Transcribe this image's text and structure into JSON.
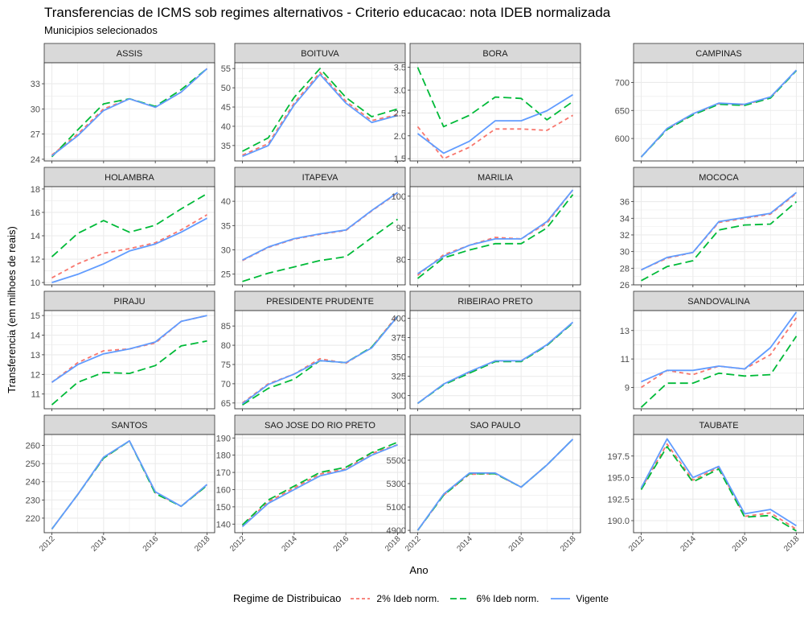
{
  "title": "Transferencias de ICMS sob regimes alternativos - Criterio educacao: nota IDEB normalizada",
  "subtitle": "Municipios selecionados",
  "xlabel": "Ano",
  "ylabel": "Transferencia (em milhoes de reais)",
  "legend": {
    "title": "Regime de Distribuicao",
    "position": "bottom",
    "items": [
      {
        "label": "2% Ideb norm.",
        "color": "#F8766D",
        "dash": "dashed"
      },
      {
        "label": "6% Ideb norm.",
        "color": "#00BA38",
        "dash": "longdash"
      },
      {
        "label": "Vigente",
        "color": "#619CFF",
        "dash": "solid"
      }
    ]
  },
  "colors": {
    "panel_bg": "#FFFFFF",
    "strip_bg": "#D9D9D9",
    "grid": "#EBEBEB",
    "border": "#333333"
  },
  "chart_data": {
    "type": "line",
    "grid": true,
    "x": [
      2012,
      2013,
      2014,
      2015,
      2016,
      2017,
      2018
    ],
    "xticks": [
      2012,
      2014,
      2016,
      2018
    ],
    "series_names": [
      "2% Ideb norm.",
      "6% Ideb norm.",
      "Vigente"
    ],
    "panels": [
      {
        "name": "ASSIS",
        "ylim": [
          23.8,
          35.5
        ],
        "yticks": [
          24,
          27,
          30,
          33
        ],
        "series": [
          [
            24.5,
            27.0,
            30.0,
            31.2,
            30.2,
            32.0,
            34.8
          ],
          [
            24.3,
            27.5,
            30.6,
            31.2,
            30.3,
            32.3,
            34.8
          ],
          [
            24.4,
            26.8,
            29.8,
            31.2,
            30.2,
            32.0,
            34.8
          ]
        ]
      },
      {
        "name": "BOITUVA",
        "ylim": [
          31.0,
          56.5
        ],
        "yticks": [
          35,
          40,
          45,
          50,
          55
        ],
        "series": [
          [
            32.5,
            35.5,
            46.0,
            54.0,
            46.5,
            41.5,
            43.0
          ],
          [
            33.5,
            37.0,
            47.5,
            55.0,
            47.5,
            42.5,
            44.5
          ],
          [
            32.2,
            35.0,
            45.5,
            53.5,
            46.0,
            41.0,
            42.8
          ]
        ]
      },
      {
        "name": "BORA",
        "ylim": [
          1.45,
          3.6
        ],
        "yticks": [
          1.5,
          2.0,
          2.5,
          3.0,
          3.5
        ],
        "series": [
          [
            2.2,
            1.5,
            1.75,
            2.15,
            2.15,
            2.12,
            2.45
          ],
          [
            3.5,
            2.2,
            2.45,
            2.85,
            2.82,
            2.35,
            2.75
          ],
          [
            2.05,
            1.62,
            1.88,
            2.33,
            2.33,
            2.55,
            2.9
          ]
        ]
      },
      {
        "name": "CAMPINAS",
        "ylim": [
          560,
          735
        ],
        "yticks": [
          600,
          650,
          700
        ],
        "series": [
          [
            567,
            617,
            643,
            662,
            660,
            673,
            722
          ],
          [
            567,
            616,
            642,
            661,
            659,
            672,
            721
          ],
          [
            567,
            618,
            644,
            663,
            661,
            674,
            722
          ]
        ]
      },
      {
        "name": "HOLAMBRA",
        "ylim": [
          9.8,
          18.2
        ],
        "yticks": [
          10,
          12,
          14,
          16,
          18
        ],
        "series": [
          [
            10.4,
            11.6,
            12.5,
            12.9,
            13.4,
            14.5,
            15.8
          ],
          [
            12.2,
            14.2,
            15.3,
            14.3,
            14.9,
            16.3,
            17.6
          ],
          [
            10.0,
            10.7,
            11.6,
            12.7,
            13.3,
            14.3,
            15.5
          ]
        ]
      },
      {
        "name": "ITAPEVA",
        "ylim": [
          22.8,
          43.0
        ],
        "yticks": [
          25,
          30,
          35,
          40
        ],
        "series": [
          [
            27.8,
            30.5,
            32.2,
            33.2,
            34.0,
            38.0,
            41.7
          ],
          [
            23.5,
            25.2,
            26.5,
            27.8,
            28.6,
            32.5,
            36.3
          ],
          [
            27.9,
            30.6,
            32.3,
            33.3,
            34.1,
            38.1,
            41.8
          ]
        ]
      },
      {
        "name": "MARILIA",
        "ylim": [
          72,
          103
        ],
        "yticks": [
          80,
          90,
          100
        ],
        "series": [
          [
            75,
            81.5,
            84.5,
            87,
            86.5,
            91.5,
            102
          ],
          [
            74,
            80.5,
            83,
            85,
            85,
            90,
            100.5
          ],
          [
            75.5,
            81,
            84.5,
            86.5,
            86.5,
            92,
            102
          ]
        ]
      },
      {
        "name": "MOCOCA",
        "ylim": [
          26.0,
          37.8
        ],
        "yticks": [
          26,
          28,
          30,
          32,
          34,
          36
        ],
        "series": [
          [
            27.8,
            29.2,
            29.9,
            33.5,
            34.0,
            34.5,
            37.0
          ],
          [
            26.5,
            28.2,
            28.9,
            32.6,
            33.2,
            33.3,
            36.0
          ],
          [
            27.8,
            29.3,
            29.9,
            33.6,
            34.1,
            34.6,
            37.1
          ]
        ]
      },
      {
        "name": "PIRAJU",
        "ylim": [
          10.25,
          15.25
        ],
        "yticks": [
          11,
          12,
          13,
          14,
          15
        ],
        "series": [
          [
            11.6,
            12.6,
            13.2,
            13.3,
            13.6,
            14.7,
            15.0
          ],
          [
            10.45,
            11.6,
            12.1,
            12.05,
            12.45,
            13.45,
            13.7
          ],
          [
            11.6,
            12.5,
            13.05,
            13.3,
            13.65,
            14.7,
            15.0
          ]
        ]
      },
      {
        "name": "PRESIDENTE PRUDENTE",
        "ylim": [
          63.5,
          89.0
        ],
        "yticks": [
          65,
          70,
          75,
          80,
          85
        ],
        "series": [
          [
            65.0,
            70.0,
            72.5,
            76.5,
            75.3,
            79.5,
            87.8
          ],
          [
            64.5,
            68.8,
            71.2,
            76.0,
            75.5,
            79.5,
            87.5
          ],
          [
            64.8,
            69.8,
            72.5,
            76.0,
            75.5,
            79.3,
            87.5
          ]
        ]
      },
      {
        "name": "RIBEIRAO PRETO",
        "ylim": [
          283,
          410
        ],
        "yticks": [
          300,
          325,
          350,
          375,
          400
        ],
        "series": [
          [
            290,
            315,
            330,
            345,
            345,
            365,
            395
          ],
          [
            290,
            314,
            329,
            344,
            344,
            365,
            394
          ],
          [
            290,
            315,
            331,
            345,
            345,
            366,
            395
          ]
        ]
      },
      {
        "name": "SANDOVALINA",
        "ylim": [
          7.5,
          14.4
        ],
        "yticks": [
          9,
          11,
          13
        ],
        "series": [
          [
            9.0,
            10.2,
            9.9,
            10.5,
            10.3,
            11.3,
            13.9
          ],
          [
            7.6,
            9.3,
            9.3,
            10.0,
            9.8,
            9.9,
            12.6
          ],
          [
            9.4,
            10.2,
            10.2,
            10.5,
            10.3,
            11.8,
            14.3
          ]
        ]
      },
      {
        "name": "SANTOS",
        "ylim": [
          212,
          266
        ],
        "yticks": [
          220,
          230,
          240,
          250,
          260
        ],
        "series": [
          [
            214,
            233,
            253,
            262.5,
            234,
            226.5,
            238
          ],
          [
            214,
            233,
            253,
            262.5,
            233.5,
            226.5,
            238
          ],
          [
            214,
            233,
            253.5,
            262.5,
            234.5,
            226.5,
            238.5
          ]
        ]
      },
      {
        "name": "SAO JOSE DO RIO PRETO",
        "ylim": [
          135,
          192
        ],
        "yticks": [
          140,
          150,
          160,
          170,
          180,
          190
        ],
        "series": [
          [
            139,
            153,
            161,
            169,
            172,
            181,
            186
          ],
          [
            139.5,
            154,
            162,
            170,
            173,
            181.5,
            187.5
          ],
          [
            138.5,
            152,
            160,
            168,
            171.5,
            180,
            186
          ]
        ]
      },
      {
        "name": "SAO PAULO",
        "ylim": [
          4880,
          5720
        ],
        "yticks": [
          4900,
          5100,
          5300,
          5500
        ],
        "series": [
          [
            4900,
            5200,
            5380,
            5385,
            5270,
            5460,
            5680
          ],
          [
            4900,
            5200,
            5385,
            5385,
            5270,
            5460,
            5680
          ],
          [
            4900,
            5210,
            5390,
            5390,
            5270,
            5460,
            5680
          ]
        ]
      },
      {
        "name": "TAUBATE",
        "ylim": [
          188.6,
          200.0
        ],
        "yticks": [
          190.0,
          192.5,
          195.0,
          197.5
        ],
        "series": [
          [
            193.7,
            198.9,
            194.7,
            196.2,
            190.5,
            190.9,
            189.0
          ],
          [
            193.6,
            198.6,
            194.5,
            196.0,
            190.4,
            190.6,
            188.8
          ],
          [
            193.8,
            199.5,
            195.0,
            196.3,
            190.8,
            191.3,
            189.4
          ]
        ]
      }
    ]
  }
}
